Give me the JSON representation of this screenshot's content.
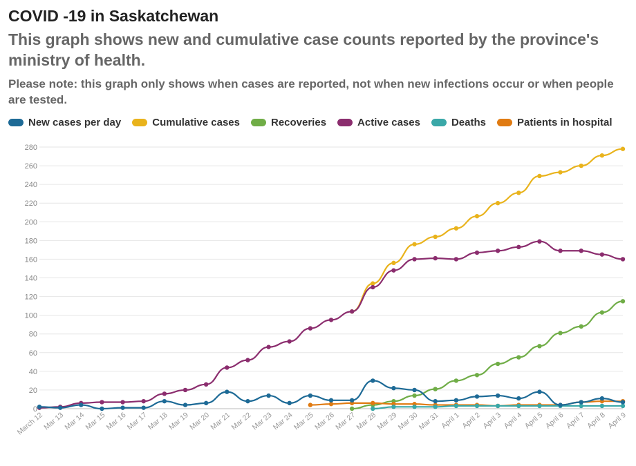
{
  "header": {
    "title": "COVID -19 in Saskatchewan",
    "subtitle": "This graph shows new and cumulative case counts reported by the province's ministry of health.",
    "note": "Please note: this graph only shows when cases are reported, not when new infections occur or when people are tested."
  },
  "chart_data": {
    "type": "line",
    "title": "COVID -19 in Saskatchewan",
    "xlabel": "",
    "ylabel": "",
    "ylim": [
      0,
      280
    ],
    "yticks": [
      0,
      20,
      40,
      60,
      80,
      100,
      120,
      140,
      160,
      180,
      200,
      220,
      240,
      260,
      280
    ],
    "grid": true,
    "legend_position": "top",
    "categories": [
      "March 12",
      "Mar 13",
      "Mar 14",
      "Mar 15",
      "Mar 16",
      "Mar 17",
      "Mar 18",
      "Mar 19",
      "Mar 20",
      "Mar 21",
      "Mar 22",
      "Mar 23",
      "Mar 24",
      "Mar 25",
      "Mar 26",
      "Mar 27",
      "Mar 28",
      "Mar 29",
      "Mar 30",
      "Mar 31",
      "April 1",
      "April 2",
      "April 3",
      "April 4",
      "April 5",
      "April 6",
      "April 7",
      "April 8",
      "April 9"
    ],
    "series": [
      {
        "name": "New cases per day",
        "color": "#1d6a96",
        "values": [
          2,
          1,
          4,
          0,
          1,
          1,
          8,
          4,
          6,
          18,
          8,
          14,
          6,
          14,
          9,
          9,
          30,
          22,
          20,
          8,
          9,
          13,
          14,
          11,
          18,
          4,
          7,
          11,
          7
        ]
      },
      {
        "name": "Cumulative cases",
        "color": "#e9b31c",
        "values": [
          null,
          null,
          null,
          null,
          null,
          null,
          null,
          null,
          null,
          null,
          null,
          null,
          null,
          null,
          null,
          104,
          134,
          156,
          176,
          184,
          193,
          206,
          220,
          231,
          249,
          253,
          260,
          271,
          278
        ]
      },
      {
        "name": "Recoveries",
        "color": "#70ad47",
        "values": [
          null,
          null,
          null,
          null,
          null,
          null,
          null,
          null,
          null,
          null,
          null,
          null,
          null,
          null,
          null,
          0,
          4,
          8,
          14,
          21,
          30,
          36,
          48,
          55,
          67,
          81,
          88,
          103,
          115
        ]
      },
      {
        "name": "Active cases",
        "color": "#8b2d6e",
        "values": [
          1,
          2,
          6,
          7,
          7,
          8,
          16,
          20,
          26,
          44,
          52,
          66,
          72,
          86,
          95,
          104,
          130,
          148,
          160,
          161,
          160,
          167,
          169,
          173,
          179,
          169,
          169,
          165,
          160
        ]
      },
      {
        "name": "Deaths",
        "color": "#3aa8a8",
        "values": [
          null,
          null,
          null,
          null,
          null,
          null,
          null,
          null,
          null,
          null,
          null,
          null,
          null,
          null,
          null,
          null,
          0,
          2,
          2,
          2,
          3,
          3,
          3,
          3,
          3,
          3,
          3,
          3,
          3
        ]
      },
      {
        "name": "Patients in hospital",
        "color": "#e07b12",
        "values": [
          null,
          null,
          null,
          null,
          null,
          null,
          null,
          null,
          null,
          null,
          null,
          null,
          null,
          4,
          5,
          6,
          6,
          5,
          5,
          4,
          4,
          4,
          3,
          4,
          4,
          4,
          7,
          8,
          8
        ]
      }
    ]
  }
}
